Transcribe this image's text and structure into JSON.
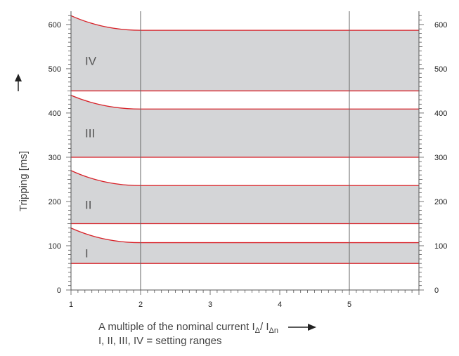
{
  "chart_data": {
    "type": "area",
    "x_ticks": [
      1,
      2,
      3,
      4,
      5
    ],
    "x_range": [
      1,
      6
    ],
    "y_ticks": [
      0,
      100,
      200,
      300,
      400,
      500,
      600
    ],
    "y_range": [
      0,
      630
    ],
    "ylabel": "Tripping  [ms]",
    "xlabel_prefix": "A multiple of the nominal current I",
    "xlabel_sub1": "Δ",
    "xlabel_mid": "/ I",
    "xlabel_sub2": "Δn",
    "caption": "I, II, III, IV = setting ranges",
    "vertical_lines_at": [
      2,
      5
    ],
    "series": [
      {
        "name": "I",
        "lower": 60,
        "upper_start": 140,
        "upper_plateau": 107,
        "curve_end_x": 2
      },
      {
        "name": "II",
        "lower": 150,
        "upper_start": 270,
        "upper_plateau": 236,
        "curve_end_x": 2
      },
      {
        "name": "III",
        "lower": 300,
        "upper_start": 440,
        "upper_plateau": 409,
        "curve_end_x": 2
      },
      {
        "name": "IV",
        "lower": 450,
        "upper_start": 620,
        "upper_plateau": 587,
        "curve_end_x": 2
      }
    ],
    "colors": {
      "band_fill": "#d4d5d7",
      "band_edge": "#d8232a",
      "axis": "#555555",
      "grid": "#666666"
    }
  }
}
